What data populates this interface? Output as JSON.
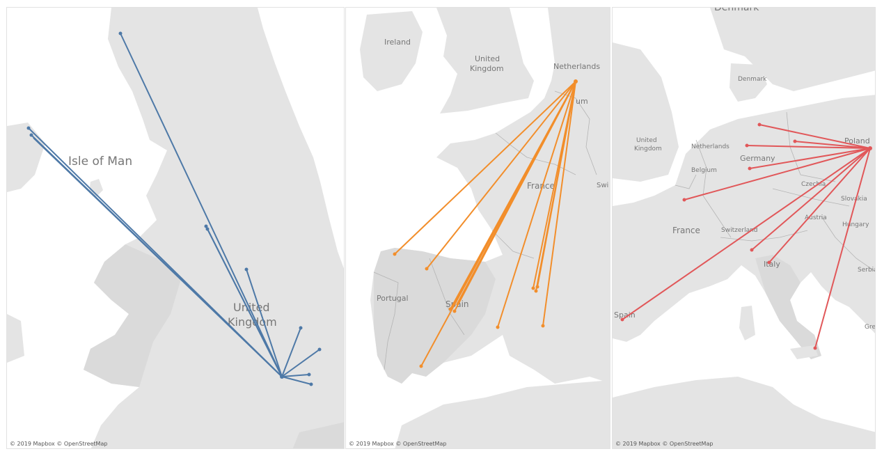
{
  "attribution": "© 2019 Mapbox © OpenStreetMap",
  "colors": {
    "land": "#e4e4e4",
    "land_alt": "#dadada",
    "water": "#ffffff",
    "border": "#b4b4b4",
    "label": "#777777",
    "series_uk": "#4e79a7",
    "series_nl": "#f28e2b",
    "series_pl": "#e15759"
  },
  "maps": {
    "uk": {
      "labels": {
        "isle_of_man": "Isle of Man",
        "uk_line1": "United",
        "uk_line2": "Kingdom"
      }
    },
    "nl": {
      "labels": {
        "ireland": "Ireland",
        "uk_line1": "United",
        "uk_line2": "Kingdom",
        "netherlands": "Netherlands",
        "belgium_partial": "um",
        "france": "France",
        "switzerland_partial": "Swi",
        "portugal": "Portugal",
        "spain": "Spain"
      }
    },
    "pl": {
      "labels": {
        "denmark_top": "Denmark",
        "denmark": "Denmark",
        "uk_line1": "United",
        "uk_line2": "Kingdom",
        "netherlands": "Netherlands",
        "belgium": "Belgium",
        "germany": "Germany",
        "poland": "Poland",
        "czechia": "Czechia",
        "slovakia": "Slovakia",
        "austria": "Austria",
        "hungary": "Hungary",
        "switzerland": "Switzerland",
        "france": "France",
        "italy": "Italy",
        "serbia": "Serbia",
        "greece_partial": "Gre",
        "spain_partial": "Spain"
      }
    }
  }
}
